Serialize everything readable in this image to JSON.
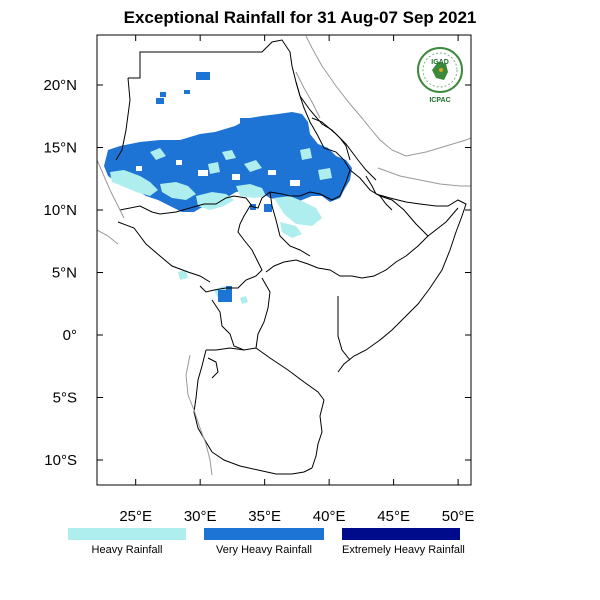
{
  "title": "Exceptional Rainfall for 31 Aug-07 Sep 2021",
  "map": {
    "lon_range": [
      22,
      51
    ],
    "lat_range": [
      -12,
      24
    ],
    "x_ticks": [
      {
        "lon": 25,
        "label": "25°E"
      },
      {
        "lon": 30,
        "label": "30°E"
      },
      {
        "lon": 35,
        "label": "35°E"
      },
      {
        "lon": 40,
        "label": "40°E"
      },
      {
        "lon": 45,
        "label": "45°E"
      },
      {
        "lon": 50,
        "label": "50°E"
      }
    ],
    "y_ticks": [
      {
        "lat": 20,
        "label": "20°N"
      },
      {
        "lat": 15,
        "label": "15°N"
      },
      {
        "lat": 10,
        "label": "10°N"
      },
      {
        "lat": 5,
        "label": "5°N"
      },
      {
        "lat": 0,
        "label": "0°"
      },
      {
        "lat": -5,
        "label": "5°S"
      },
      {
        "lat": -10,
        "label": "10°S"
      }
    ]
  },
  "logo": {
    "top_text": "IGAD",
    "bottom_text": "ICPAC",
    "ring_color": "#3a8a3a",
    "fill_color": "#ffffff"
  },
  "legend": [
    {
      "label": "Heavy Rainfall",
      "color": "#aeeeee"
    },
    {
      "label": "Very Heavy Rainfall",
      "color": "#1e74d4"
    },
    {
      "label": "Extremely Heavy Rainfall",
      "color": "#000b8c"
    }
  ]
}
